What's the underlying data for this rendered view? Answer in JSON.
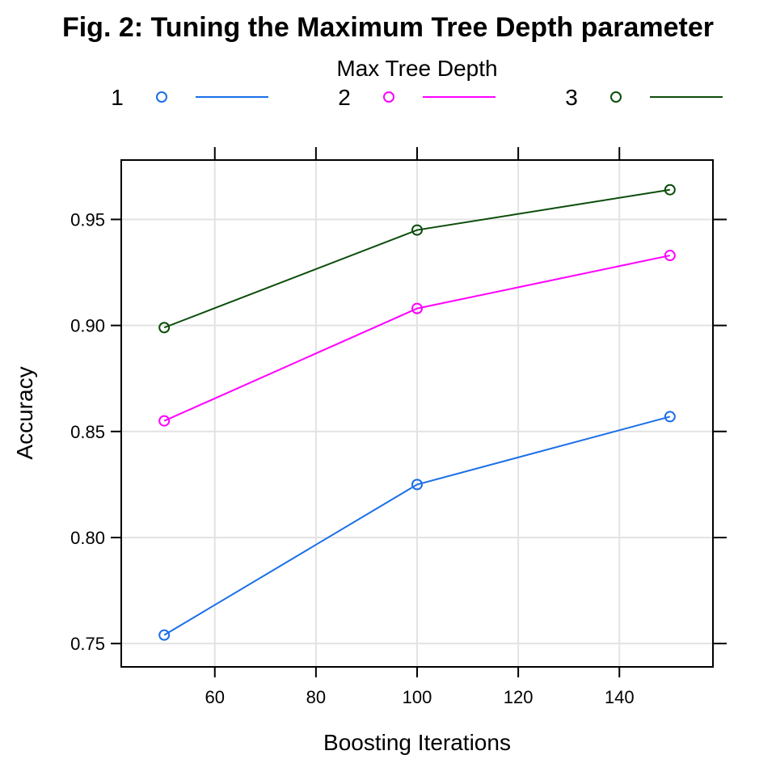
{
  "chart_data": {
    "type": "line",
    "title": "Fig. 2: Tuning the Maximum Tree Depth parameter",
    "xlabel": "Boosting Iterations",
    "ylabel": "Accuracy",
    "xlim": [
      41.5,
      158.5
    ],
    "ylim": [
      0.739,
      0.978
    ],
    "x_ticks": [
      60,
      80,
      100,
      120,
      140
    ],
    "y_ticks": [
      0.75,
      0.8,
      0.85,
      0.9,
      0.95
    ],
    "x_tick_labels": [
      "60",
      "80",
      "100",
      "120",
      "140"
    ],
    "y_tick_labels": [
      "0.75",
      "0.80",
      "0.85",
      "0.90",
      "0.95"
    ],
    "grid": true,
    "legend": {
      "title": "Max Tree Depth",
      "position": "top"
    },
    "x": [
      50,
      100,
      150
    ],
    "series": [
      {
        "name": "1",
        "color": "#1a6fe8",
        "values": [
          0.754,
          0.825,
          0.857
        ]
      },
      {
        "name": "2",
        "color": "#ff00ff",
        "values": [
          0.855,
          0.908,
          0.933
        ]
      },
      {
        "name": "3",
        "color": "#0b4d0b",
        "values": [
          0.899,
          0.945,
          0.964
        ]
      }
    ]
  }
}
